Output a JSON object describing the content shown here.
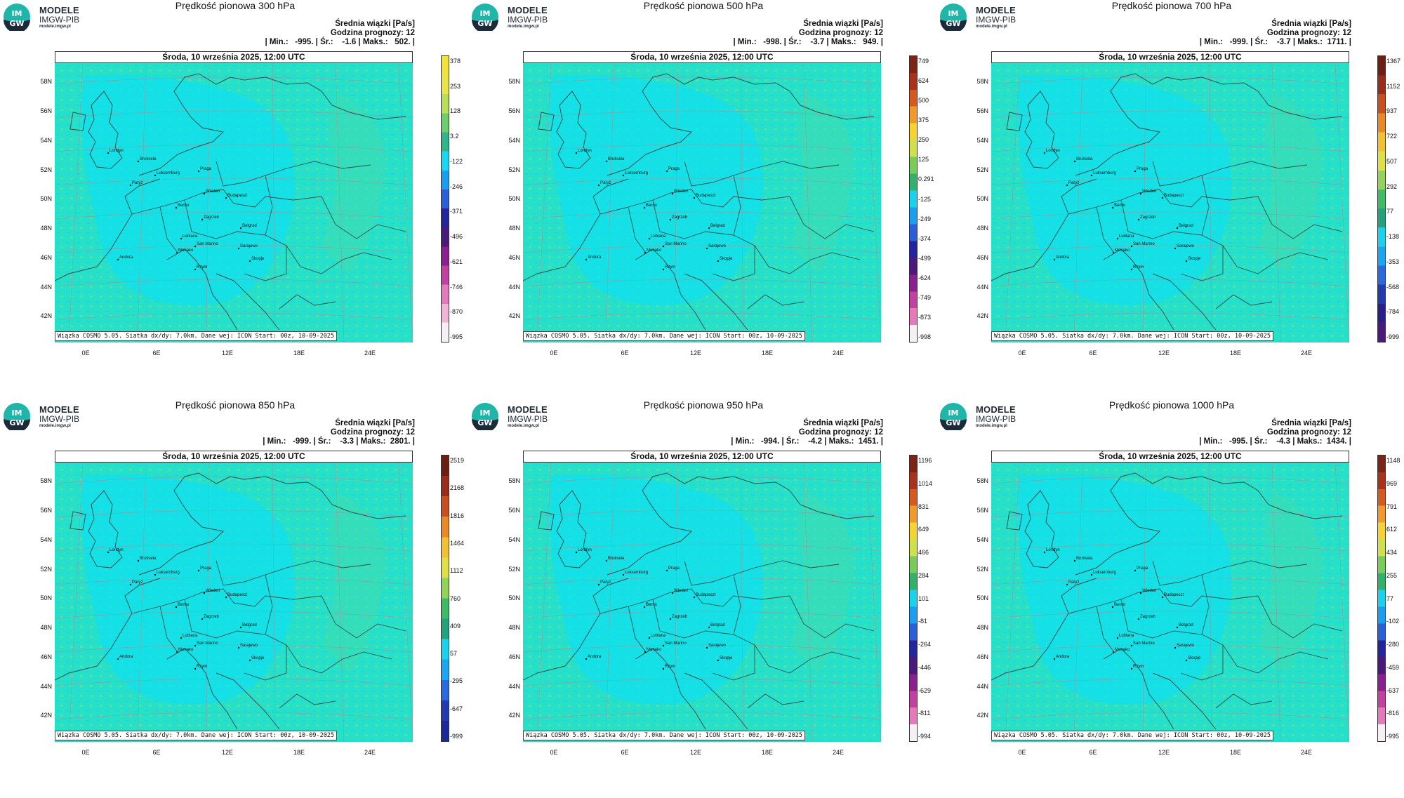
{
  "logo": {
    "mark": "IM GW",
    "name": "MODELE",
    "org": "IMGW-PIB",
    "url": "modele.imgw.pl"
  },
  "date": "Środa, 10 września 2025, 12:00 UTC",
  "credit": "Wiązka COSMO 5.05. Siatka dx/dy: 7.0km. Dane wej: ICON Start: 00z, 10-09-2025",
  "units": "Średnia wiązki [Pa/s]",
  "forecast_hour": "Godzina prognozy: 12",
  "lat_labels": [
    "58N",
    "56N",
    "54N",
    "52N",
    "50N",
    "48N",
    "46N",
    "44N",
    "42N"
  ],
  "lon_labels": [
    "0E",
    "6E",
    "12E",
    "18E",
    "24E"
  ],
  "cities": [
    "Londyn",
    "Bruksela",
    "Paryż",
    "Luksemburg",
    "Praga",
    "Wiedeń",
    "Budapeszt",
    "Berno",
    "Zagrzeb",
    "Belgrad",
    "Lublana",
    "San Marino",
    "Sarajewo",
    "Monako",
    "Andora",
    "Rzym",
    "Skopje"
  ],
  "panels": [
    {
      "title": "Prędkość pionowa 300 hPa",
      "stats": "| Min.:   -995. | Śr.:    -1.6 | Maks.:   502. |",
      "colorbar": {
        "type": "yellow-green-blue-purple-pink",
        "labels": [
          "378",
          "253",
          "128",
          "3.2",
          "-122",
          "-246",
          "-371",
          "-496",
          "-621",
          "-746",
          "-870",
          "-995"
        ]
      }
    },
    {
      "title": "Prędkość pionowa 500 hPa",
      "stats": "| Min.:   -998. | Śr.:    -3.7 | Maks.:   949. |",
      "colorbar": {
        "type": "brown-yellow-green-blue-purple-pink",
        "labels": [
          "749",
          "624",
          "500",
          "375",
          "250",
          "125",
          "0.291",
          "-125",
          "-249",
          "-374",
          "-499",
          "-624",
          "-749",
          "-873",
          "-998"
        ]
      }
    },
    {
      "title": "Prędkość pionowa 700 hPa",
      "stats": "| Min.:   -999. | Śr.:    -3.7 | Maks.:  1711. |",
      "colorbar": {
        "type": "brown-yellow-green-blue-purple",
        "labels": [
          "1367",
          "1152",
          "937",
          "722",
          "507",
          "292",
          "77",
          "-138",
          "-353",
          "-568",
          "-784",
          "-999"
        ]
      }
    },
    {
      "title": "Prędkość pionowa 850 hPa",
      "stats": "| Min.:   -999. | Śr.:    -3.3 | Maks.:  2801. |",
      "colorbar": {
        "type": "brown-yellow-green-blue",
        "labels": [
          "2519",
          "2168",
          "1816",
          "1464",
          "1112",
          "760",
          "409",
          "57",
          "-295",
          "-647",
          "-999"
        ]
      }
    },
    {
      "title": "Prędkość pionowa 950 hPa",
      "stats": "| Min.:   -994. | Śr.:    -4.2 | Maks.:  1451. |",
      "colorbar": {
        "type": "brown-yellow-green-blue-purple-pink",
        "labels": [
          "1196",
          "1014",
          "831",
          "649",
          "466",
          "284",
          "101",
          "-81",
          "-264",
          "-446",
          "-629",
          "-811",
          "-994"
        ]
      }
    },
    {
      "title": "Prędkość pionowa 1000 hPa",
      "stats": "| Min.:   -995. | Śr.:    -4.3 | Maks.:  1434. |",
      "colorbar": {
        "type": "brown-yellow-green-blue-purple-pink",
        "labels": [
          "1148",
          "969",
          "791",
          "612",
          "434",
          "255",
          "77",
          "-102",
          "-280",
          "-459",
          "-637",
          "-816",
          "-995"
        ]
      }
    }
  ],
  "colors": {
    "map_background": "#26e0c8",
    "map_field": "#10e0f0",
    "border": "#2f4f4f"
  }
}
